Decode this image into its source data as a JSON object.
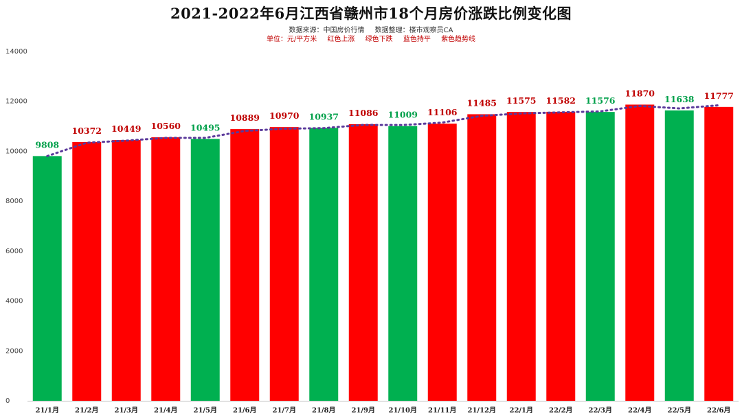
{
  "title": "2021-2022年6月江西省赣州市18个月房价涨跌比例变化图",
  "subtitle_source": "数据来源：中国房价行情",
  "subtitle_editor": "数据整理：楼市观察员CA",
  "legend": {
    "unit": "单位：元/平方米",
    "red": "红色上涨",
    "green": "绿色下跌",
    "blue": "蓝色持平",
    "purple": "紫色趋势线"
  },
  "colors": {
    "up": "#ff0000",
    "down": "#00b050",
    "trend": "#5b3a9b",
    "label_up": "#c00000",
    "label_down": "#00a04a"
  },
  "chart_data": {
    "type": "bar",
    "categories": [
      "21/1月",
      "21/2月",
      "21/3月",
      "21/4月",
      "21/5月",
      "21/6月",
      "21/7月",
      "21/8月",
      "21/9月",
      "21/10月",
      "21/11月",
      "21/12月",
      "22/1月",
      "22/2月",
      "22/3月",
      "22/4月",
      "22/5月",
      "22/6月"
    ],
    "values": [
      9808,
      10372,
      10449,
      10560,
      10495,
      10889,
      10970,
      10937,
      11086,
      11009,
      11106,
      11485,
      11575,
      11582,
      11576,
      11870,
      11638,
      11777
    ],
    "directions": [
      "down",
      "up",
      "up",
      "up",
      "down",
      "up",
      "up",
      "down",
      "up",
      "down",
      "up",
      "up",
      "up",
      "up",
      "down",
      "up",
      "down",
      "up"
    ],
    "ylim": [
      0,
      14000
    ],
    "yticks": [
      0,
      2000,
      4000,
      6000,
      8000,
      10000,
      12000,
      14000
    ],
    "trendline": "dotted",
    "grid": false
  }
}
